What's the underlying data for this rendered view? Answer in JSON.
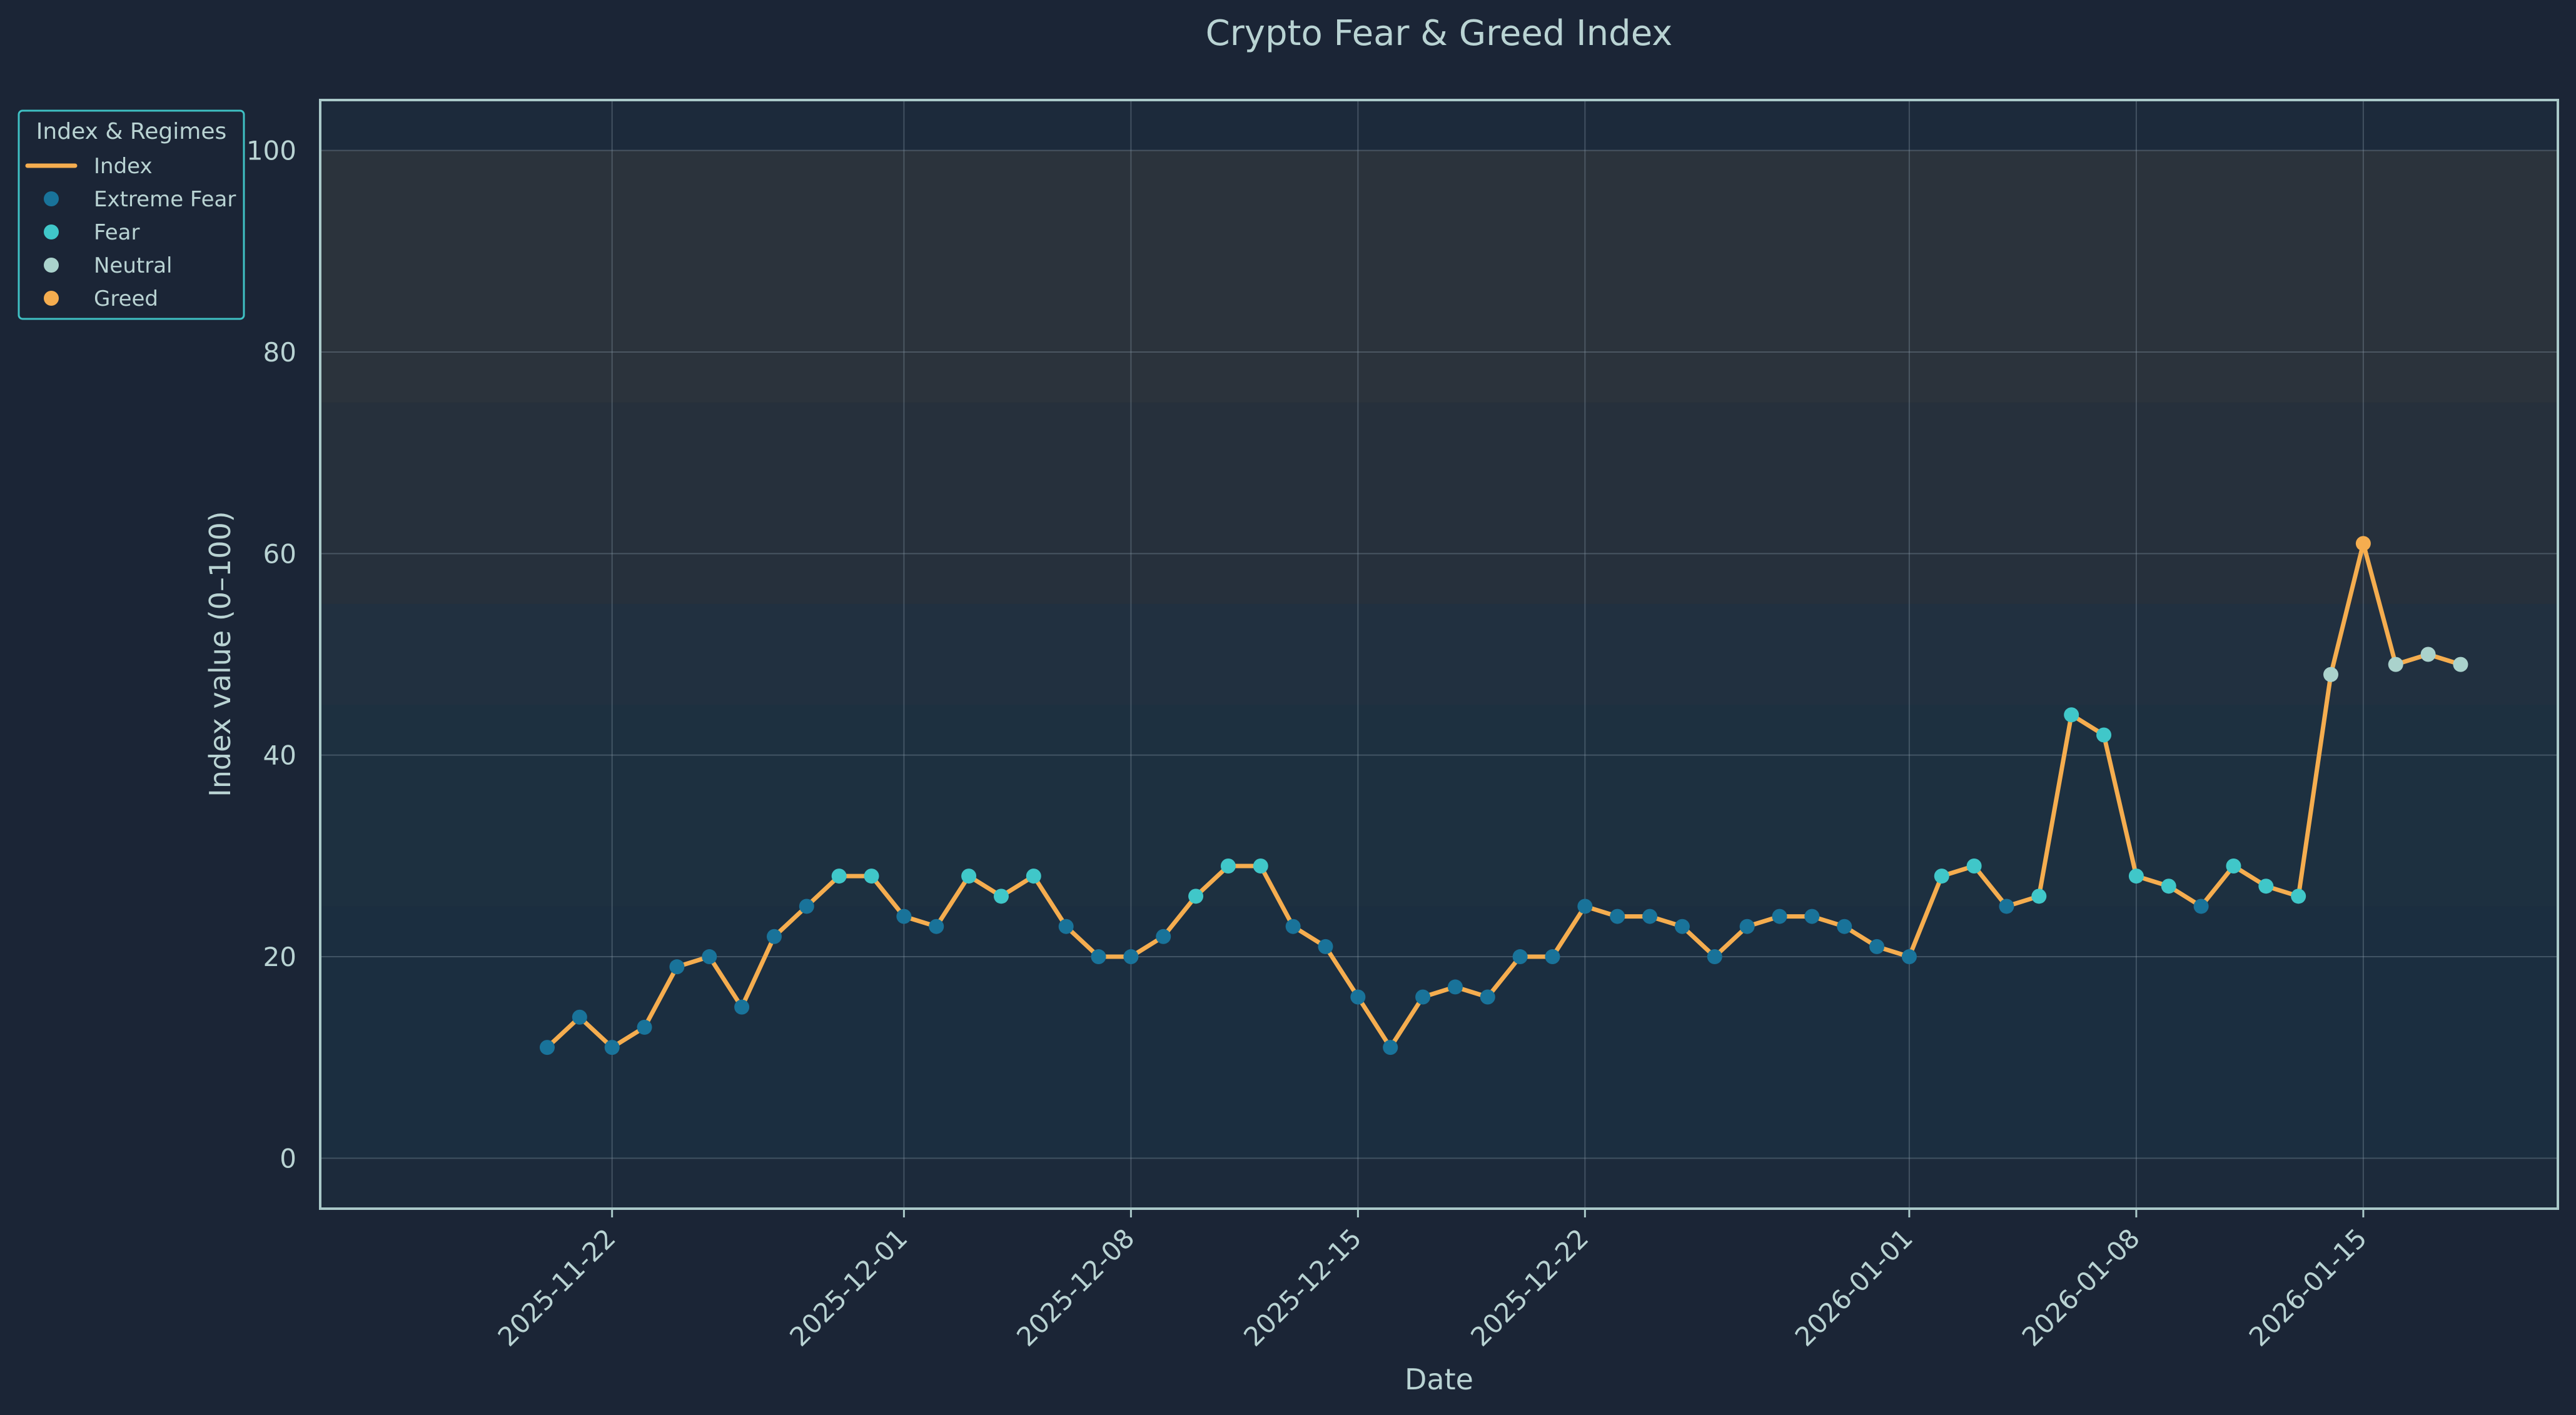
{
  "chart_data": {
    "type": "line",
    "title": "Crypto Fear & Greed Index",
    "xlabel": "Date",
    "ylabel": "Index value (0–100)",
    "ylim": [
      -5,
      105
    ],
    "xlim": [
      "2025-11-13",
      "2026-01-21"
    ],
    "grid": true,
    "x_ticks": [
      "2025-11-22",
      "2025-12-01",
      "2025-12-08",
      "2025-12-15",
      "2025-12-22",
      "2026-01-01",
      "2026-01-08",
      "2026-01-15"
    ],
    "y_ticks": [
      0,
      20,
      40,
      60,
      80,
      100
    ],
    "legend": {
      "title": "Index & Regimes",
      "placement": "upper-left-outside",
      "entries": [
        {
          "label": "Index",
          "kind": "line",
          "color": "#f5ad4f"
        },
        {
          "label": "Extreme Fear",
          "kind": "point",
          "color": "#19739a"
        },
        {
          "label": "Fear",
          "kind": "point",
          "color": "#40c7c9"
        },
        {
          "label": "Neutral",
          "kind": "point",
          "color": "#aad2cc"
        },
        {
          "label": "Greed",
          "kind": "point",
          "color": "#f5ad4f"
        }
      ]
    },
    "bands": [
      {
        "from": 0,
        "to": 25,
        "color": "#19739a",
        "opacity": 0.06
      },
      {
        "from": 25,
        "to": 45,
        "color": "#40c7c9",
        "opacity": 0.04
      },
      {
        "from": 45,
        "to": 55,
        "color": "#aad2cc",
        "opacity": 0.04
      },
      {
        "from": 55,
        "to": 75,
        "color": "#f5ad4f",
        "opacity": 0.05
      },
      {
        "from": 75,
        "to": 100,
        "color": "#f5ad4f",
        "opacity": 0.07
      }
    ],
    "series": [
      {
        "name": "Index",
        "color": "#f5ad4f",
        "points": [
          {
            "x": "2025-11-20",
            "y": 11,
            "regime": "Extreme Fear"
          },
          {
            "x": "2025-11-21",
            "y": 14,
            "regime": "Extreme Fear"
          },
          {
            "x": "2025-11-22",
            "y": 11,
            "regime": "Extreme Fear"
          },
          {
            "x": "2025-11-23",
            "y": 13,
            "regime": "Extreme Fear"
          },
          {
            "x": "2025-11-24",
            "y": 19,
            "regime": "Extreme Fear"
          },
          {
            "x": "2025-11-25",
            "y": 20,
            "regime": "Extreme Fear"
          },
          {
            "x": "2025-11-26",
            "y": 15,
            "regime": "Extreme Fear"
          },
          {
            "x": "2025-11-27",
            "y": 22,
            "regime": "Extreme Fear"
          },
          {
            "x": "2025-11-28",
            "y": 25,
            "regime": "Extreme Fear"
          },
          {
            "x": "2025-11-29",
            "y": 28,
            "regime": "Fear"
          },
          {
            "x": "2025-11-30",
            "y": 28,
            "regime": "Fear"
          },
          {
            "x": "2025-12-01",
            "y": 24,
            "regime": "Extreme Fear"
          },
          {
            "x": "2025-12-02",
            "y": 23,
            "regime": "Extreme Fear"
          },
          {
            "x": "2025-12-03",
            "y": 28,
            "regime": "Fear"
          },
          {
            "x": "2025-12-04",
            "y": 26,
            "regime": "Fear"
          },
          {
            "x": "2025-12-05",
            "y": 28,
            "regime": "Fear"
          },
          {
            "x": "2025-12-06",
            "y": 23,
            "regime": "Extreme Fear"
          },
          {
            "x": "2025-12-07",
            "y": 20,
            "regime": "Extreme Fear"
          },
          {
            "x": "2025-12-08",
            "y": 20,
            "regime": "Extreme Fear"
          },
          {
            "x": "2025-12-09",
            "y": 22,
            "regime": "Extreme Fear"
          },
          {
            "x": "2025-12-10",
            "y": 26,
            "regime": "Fear"
          },
          {
            "x": "2025-12-11",
            "y": 29,
            "regime": "Fear"
          },
          {
            "x": "2025-12-12",
            "y": 29,
            "regime": "Fear"
          },
          {
            "x": "2025-12-13",
            "y": 23,
            "regime": "Extreme Fear"
          },
          {
            "x": "2025-12-14",
            "y": 21,
            "regime": "Extreme Fear"
          },
          {
            "x": "2025-12-15",
            "y": 16,
            "regime": "Extreme Fear"
          },
          {
            "x": "2025-12-16",
            "y": 11,
            "regime": "Extreme Fear"
          },
          {
            "x": "2025-12-17",
            "y": 16,
            "regime": "Extreme Fear"
          },
          {
            "x": "2025-12-18",
            "y": 17,
            "regime": "Extreme Fear"
          },
          {
            "x": "2025-12-19",
            "y": 16,
            "regime": "Extreme Fear"
          },
          {
            "x": "2025-12-20",
            "y": 20,
            "regime": "Extreme Fear"
          },
          {
            "x": "2025-12-21",
            "y": 20,
            "regime": "Extreme Fear"
          },
          {
            "x": "2025-12-22",
            "y": 25,
            "regime": "Extreme Fear"
          },
          {
            "x": "2025-12-23",
            "y": 24,
            "regime": "Extreme Fear"
          },
          {
            "x": "2025-12-24",
            "y": 24,
            "regime": "Extreme Fear"
          },
          {
            "x": "2025-12-25",
            "y": 23,
            "regime": "Extreme Fear"
          },
          {
            "x": "2025-12-26",
            "y": 20,
            "regime": "Extreme Fear"
          },
          {
            "x": "2025-12-27",
            "y": 23,
            "regime": "Extreme Fear"
          },
          {
            "x": "2025-12-28",
            "y": 24,
            "regime": "Extreme Fear"
          },
          {
            "x": "2025-12-29",
            "y": 24,
            "regime": "Extreme Fear"
          },
          {
            "x": "2025-12-30",
            "y": 23,
            "regime": "Extreme Fear"
          },
          {
            "x": "2025-12-31",
            "y": 21,
            "regime": "Extreme Fear"
          },
          {
            "x": "2026-01-01",
            "y": 20,
            "regime": "Extreme Fear"
          },
          {
            "x": "2026-01-02",
            "y": 28,
            "regime": "Fear"
          },
          {
            "x": "2026-01-03",
            "y": 29,
            "regime": "Fear"
          },
          {
            "x": "2026-01-04",
            "y": 25,
            "regime": "Extreme Fear"
          },
          {
            "x": "2026-01-05",
            "y": 26,
            "regime": "Fear"
          },
          {
            "x": "2026-01-06",
            "y": 44,
            "regime": "Fear"
          },
          {
            "x": "2026-01-07",
            "y": 42,
            "regime": "Fear"
          },
          {
            "x": "2026-01-08",
            "y": 28,
            "regime": "Fear"
          },
          {
            "x": "2026-01-09",
            "y": 27,
            "regime": "Fear"
          },
          {
            "x": "2026-01-10",
            "y": 25,
            "regime": "Extreme Fear"
          },
          {
            "x": "2026-01-11",
            "y": 29,
            "regime": "Fear"
          },
          {
            "x": "2026-01-12",
            "y": 27,
            "regime": "Fear"
          },
          {
            "x": "2026-01-13",
            "y": 26,
            "regime": "Fear"
          },
          {
            "x": "2026-01-14",
            "y": 48,
            "regime": "Neutral"
          },
          {
            "x": "2026-01-15",
            "y": 61,
            "regime": "Greed"
          },
          {
            "x": "2026-01-16",
            "y": 49,
            "regime": "Neutral"
          },
          {
            "x": "2026-01-17",
            "y": 50,
            "regime": "Neutral"
          },
          {
            "x": "2026-01-18",
            "y": 49,
            "regime": "Neutral"
          }
        ]
      }
    ]
  },
  "colors": {
    "background": "#1b2536",
    "plot_background": "#1c2a3b",
    "frame": "#aac9c9",
    "grid": "#8a9aa8",
    "text": "#b9d3d3",
    "legend_border": "#3fc1c4",
    "legend_background": "#1b2536"
  }
}
